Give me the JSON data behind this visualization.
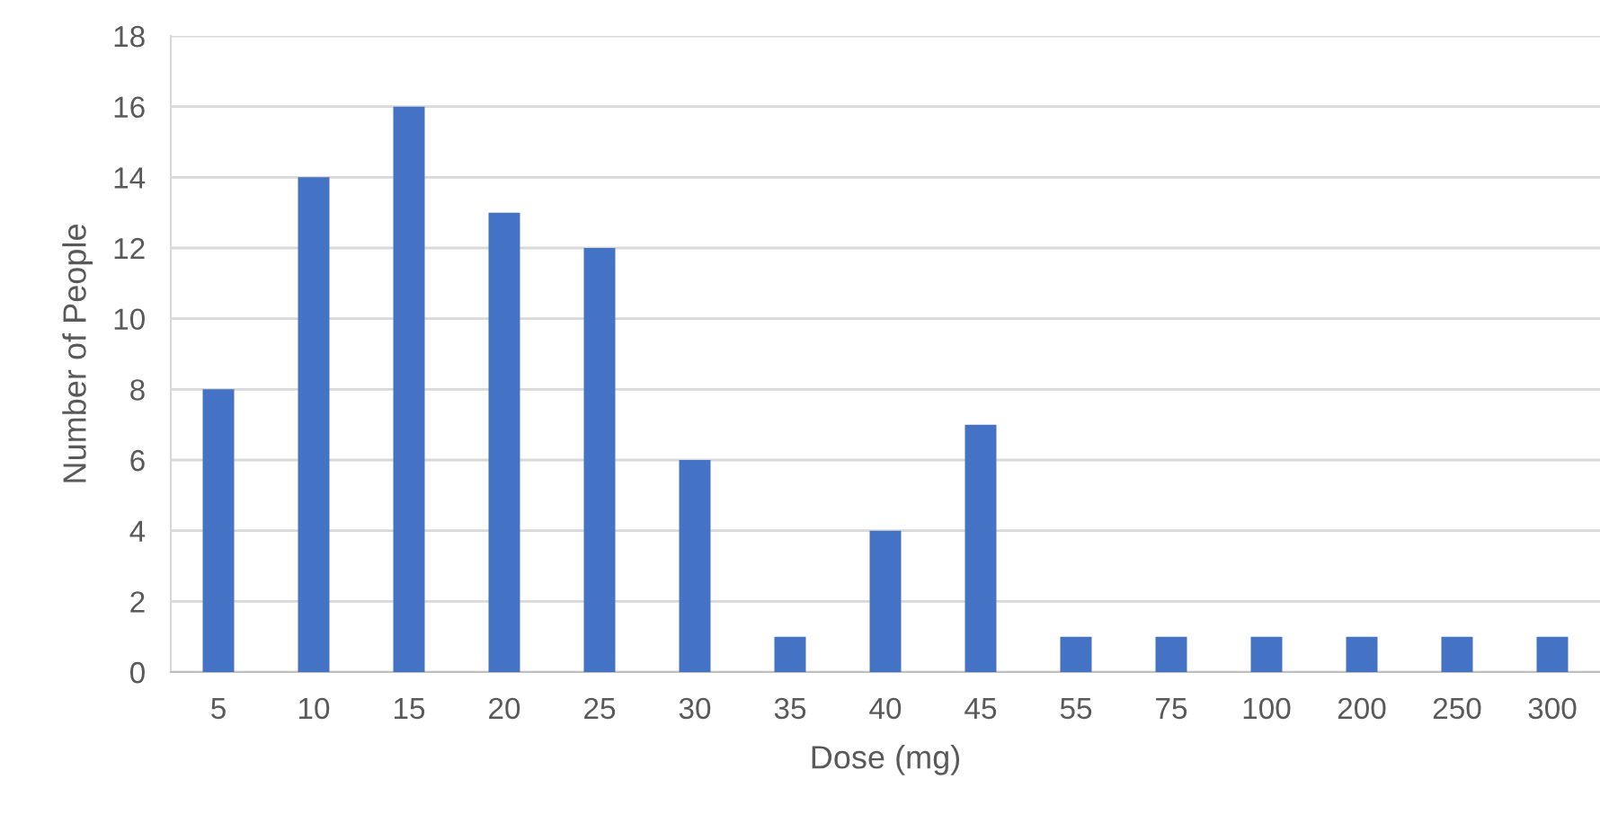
{
  "chart_data": {
    "type": "bar",
    "xlabel": "Dose (mg)",
    "ylabel": "Number of People",
    "categories": [
      "5",
      "10",
      "15",
      "20",
      "25",
      "30",
      "35",
      "40",
      "45",
      "55",
      "75",
      "100",
      "200",
      "250",
      "300"
    ],
    "values": [
      8,
      14,
      16,
      13,
      12,
      6,
      1,
      4,
      7,
      1,
      1,
      1,
      1,
      1,
      1
    ],
    "color": "#4472c4",
    "ylim": [
      0,
      18
    ],
    "yticks": [
      0,
      2,
      4,
      6,
      8,
      10,
      12,
      14,
      16,
      18
    ],
    "grid": "y",
    "legend": false
  }
}
